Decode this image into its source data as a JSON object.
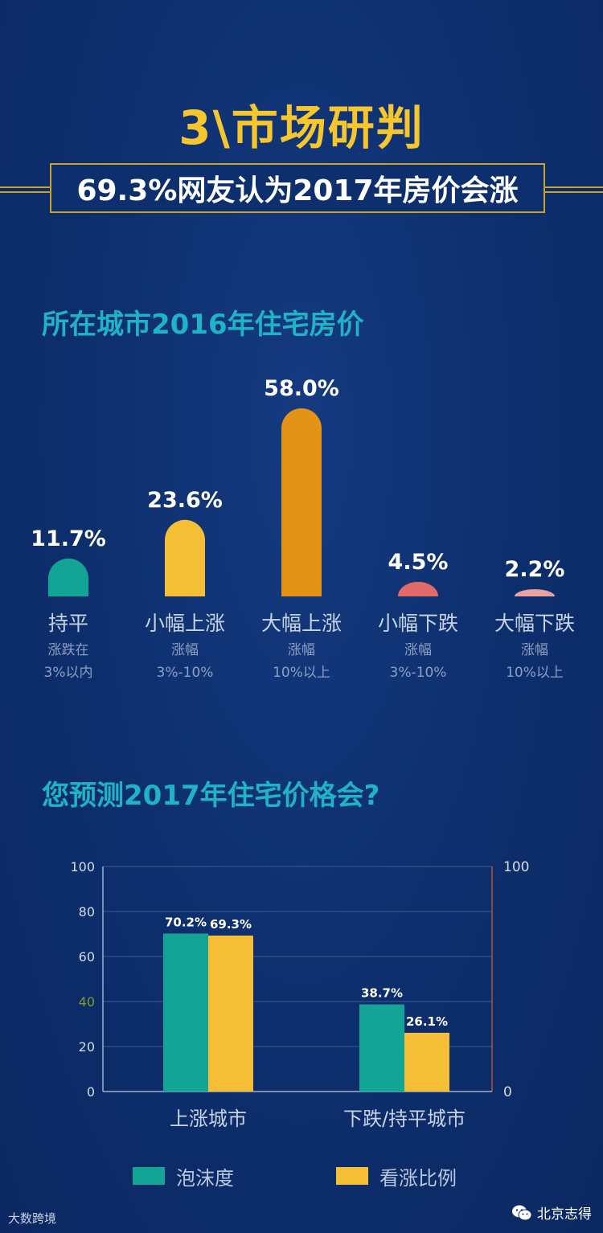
{
  "title": "3\\市场研判",
  "subtitle": "69.3%网友认为2017年房价会涨",
  "colors": {
    "background": "#0e3070",
    "gold": "#f5c62e",
    "teal": "#12a596",
    "yellow": "#f4be35",
    "orange": "#e39417",
    "coral": "#e46a6a",
    "pink": "#e8a2a2",
    "heading": "#1fb3c6"
  },
  "chart_data": [
    {
      "type": "bar",
      "title": "所在城市2016年住宅房价",
      "categories": [
        "持平",
        "小幅上涨",
        "大幅上涨",
        "小幅下跌",
        "大幅下跌"
      ],
      "descriptions": [
        [
          "涨跌在",
          "3%以内"
        ],
        [
          "涨幅",
          "3%-10%"
        ],
        [
          "涨幅",
          "10%以上"
        ],
        [
          "涨幅",
          "3%-10%"
        ],
        [
          "涨幅",
          "10%以上"
        ]
      ],
      "values": [
        11.7,
        23.6,
        58.0,
        4.5,
        2.2
      ],
      "value_labels": [
        "11.7%",
        "23.6%",
        "58.0%",
        "4.5%",
        "2.2%"
      ],
      "bar_colors": [
        "#12a596",
        "#f4be35",
        "#e39417",
        "#e46a6a",
        "#e8a2a2"
      ]
    },
    {
      "type": "bar",
      "title": "您预测2017年住宅价格会?",
      "categories": [
        "上涨城市",
        "下跌/持平城市"
      ],
      "series": [
        {
          "name": "泡沫度",
          "values": [
            70.2,
            38.7
          ],
          "labels": [
            "70.2%",
            "38.7%"
          ],
          "color": "#12a596"
        },
        {
          "name": "看涨比例",
          "values": [
            69.3,
            26.1
          ],
          "labels": [
            "69.3%",
            "26.1%"
          ],
          "color": "#f4be35"
        }
      ],
      "ylim": [
        0,
        100
      ],
      "y_ticks": [
        "0",
        "20",
        "40",
        "60",
        "80",
        "100"
      ],
      "y2_ticks": [
        "0",
        "100"
      ],
      "grid": true,
      "legend": "bottom"
    }
  ],
  "footer": {
    "left": "大数跨境",
    "right": "北京志得"
  }
}
